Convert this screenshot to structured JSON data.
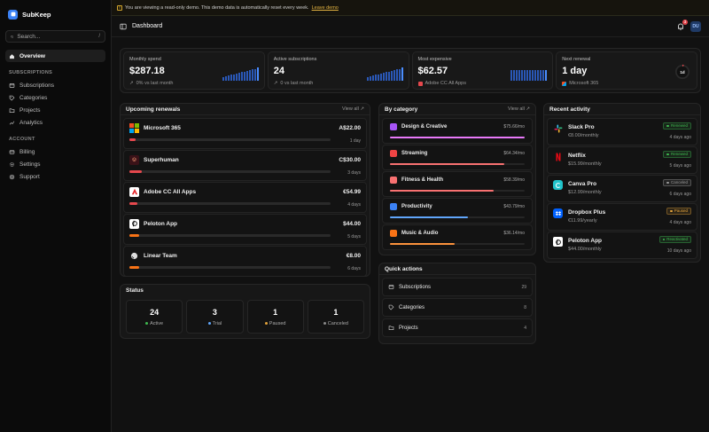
{
  "app": {
    "name": "SubKeep"
  },
  "search": {
    "placeholder": "Search...",
    "shortcut": "/"
  },
  "nav": {
    "overview": "Overview",
    "subscriptions_section": "SUBSCRIPTIONS",
    "subscriptions_items": [
      {
        "label": "Subscriptions",
        "icon": "list-icon"
      },
      {
        "label": "Categories",
        "icon": "tag-icon"
      },
      {
        "label": "Projects",
        "icon": "folder-icon"
      },
      {
        "label": "Analytics",
        "icon": "chart-icon"
      }
    ],
    "account_section": "ACCOUNT",
    "account_items": [
      {
        "label": "Billing",
        "icon": "card-icon"
      },
      {
        "label": "Settings",
        "icon": "gear-icon"
      },
      {
        "label": "Support",
        "icon": "help-icon"
      }
    ]
  },
  "banner": {
    "text": "You are viewing a read-only demo. This demo data is automatically reset every week.",
    "link": "Leave demo"
  },
  "topbar": {
    "title": "Dashboard",
    "notifications": "3",
    "avatar": "DU"
  },
  "stats": [
    {
      "label": "Monthly spend",
      "value": "$287.18",
      "sub": "0% vs last month",
      "bars": [
        0.3,
        0.35,
        0.4,
        0.45,
        0.5,
        0.55,
        0.6,
        0.65,
        0.7,
        0.75,
        0.8,
        0.85,
        0.9,
        1.0
      ]
    },
    {
      "label": "Active subscriptions",
      "value": "24",
      "sub": "0 vs last month",
      "bars": [
        0.3,
        0.35,
        0.4,
        0.45,
        0.5,
        0.55,
        0.6,
        0.65,
        0.7,
        0.75,
        0.8,
        0.85,
        0.9,
        1.0
      ]
    },
    {
      "label": "Most expensive",
      "value": "$62.57",
      "sub": "Adobe CC All Apps",
      "bars": [
        0.8,
        0.8,
        0.8,
        0.8,
        0.8,
        0.8,
        0.8,
        0.8,
        0.8,
        0.8,
        0.8,
        0.8,
        0.8,
        0.8
      ]
    },
    {
      "label": "Next renewal",
      "value": "1 day",
      "sub": "Microsoft 365",
      "ring_label": "1d",
      "ring_fraction": 0.03
    }
  ],
  "renewals": {
    "title": "Upcoming renewals",
    "view_all": "View all",
    "items": [
      {
        "name": "Microsoft 365",
        "price": "A$22.00",
        "days": "1 day",
        "progress": 0.02,
        "logo": "microsoft-logo"
      },
      {
        "name": "Superhuman",
        "price": "C$30.00",
        "days": "3 days",
        "progress": 0.06,
        "logo": "superhuman-logo"
      },
      {
        "name": "Adobe CC All Apps",
        "price": "€54.99",
        "days": "4 days",
        "progress": 0.04,
        "logo": "adobe-logo"
      },
      {
        "name": "Peloton App",
        "price": "$44.00",
        "days": "5 days",
        "progress": 0.05,
        "logo": "peloton-logo"
      },
      {
        "name": "Linear Team",
        "price": "€8.00",
        "days": "6 days",
        "progress": 0.05,
        "logo": "linear-logo"
      }
    ]
  },
  "categories": {
    "title": "By category",
    "view_all": "View all",
    "items": [
      {
        "name": "Design & Creative",
        "value": "$75.66/mo",
        "fraction": 1.0,
        "color": "#e879f9"
      },
      {
        "name": "Streaming",
        "value": "$64.34/mo",
        "fraction": 0.85,
        "color": "#f87171"
      },
      {
        "name": "Fitness & Health",
        "value": "$58.39/mo",
        "fraction": 0.77,
        "color": "#f87171"
      },
      {
        "name": "Productivity",
        "value": "$43.79/mo",
        "fraction": 0.58,
        "color": "#60a5fa"
      },
      {
        "name": "Music & Audio",
        "value": "$36.14/mo",
        "fraction": 0.48,
        "color": "#fb923c"
      }
    ]
  },
  "activity": {
    "title": "Recent activity",
    "items": [
      {
        "name": "Slack Pro",
        "price": "€8.00/monthly",
        "badge": "Renewed",
        "badge_color": "#3fb950",
        "time": "4 days ago",
        "logo": "slack-logo"
      },
      {
        "name": "Netflix",
        "price": "$15.99/monthly",
        "badge": "Renewed",
        "badge_color": "#3fb950",
        "time": "5 days ago",
        "logo": "netflix-logo"
      },
      {
        "name": "Canva Pro",
        "price": "$12.99/monthly",
        "badge": "Canceled",
        "badge_color": "#9a9a9a",
        "time": "6 days ago",
        "logo": "canva-logo"
      },
      {
        "name": "Dropbox Plus",
        "price": "€11.99/yearly",
        "badge": "Paused",
        "badge_color": "#e3a33b",
        "time": "4 days ago",
        "logo": "dropbox-logo"
      },
      {
        "name": "Peloton App",
        "price": "$44.00/monthly",
        "badge": "Reactivated",
        "badge_color": "#3fb950",
        "time": "10 days ago",
        "logo": "peloton-logo"
      }
    ]
  },
  "status": {
    "title": "Status",
    "items": [
      {
        "num": "24",
        "label": "Active",
        "color": "#3fb950"
      },
      {
        "num": "3",
        "label": "Trial",
        "color": "#60a5fa"
      },
      {
        "num": "1",
        "label": "Paused",
        "color": "#e3a33b"
      },
      {
        "num": "1",
        "label": "Canceled",
        "color": "#8a8a8a"
      }
    ]
  },
  "quick_actions": {
    "title": "Quick actions",
    "items": [
      {
        "label": "Subscriptions",
        "count": "29",
        "icon": "list-icon"
      },
      {
        "label": "Categories",
        "count": "8",
        "icon": "tag-icon"
      },
      {
        "label": "Projects",
        "count": "4",
        "icon": "folder-icon"
      }
    ]
  },
  "colors": {
    "accent": "#3b82f6",
    "danger": "#e5484d"
  }
}
